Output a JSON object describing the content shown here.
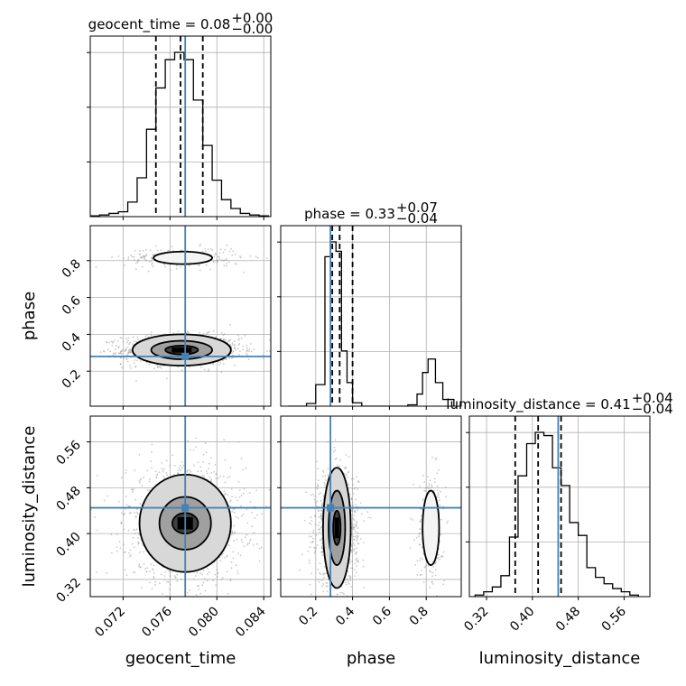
{
  "chart_data": {
    "type": "corner",
    "parameters": [
      "geocent_time",
      "phase",
      "luminosity_distance"
    ],
    "truths": {
      "geocent_time": 0.0773,
      "phase": 0.28,
      "luminosity_distance": 0.445
    },
    "truth_color": "#4682b4",
    "titles": [
      {
        "param": "geocent_time",
        "label": "geocent_time = 0.08",
        "sup": "+0.00",
        "sub": "−0.00"
      },
      {
        "param": "phase",
        "label": "phase = 0.33",
        "sup": "+0.07",
        "sub": "−0.04"
      },
      {
        "param": "luminosity_distance",
        "label": "luminosity_distance = 0.41",
        "sup": "+0.04",
        "sub": "−0.04"
      }
    ],
    "axes": {
      "geocent_time": {
        "range": [
          0.0692,
          0.0846
        ],
        "ticks": [
          "0.072",
          "0.076",
          "0.080",
          "0.084"
        ],
        "tick_values": [
          0.072,
          0.076,
          0.08,
          0.084
        ]
      },
      "phase": {
        "range": [
          0.01,
          0.99
        ],
        "ticks": [
          "0.2",
          "0.4",
          "0.6",
          "0.8"
        ],
        "tick_values": [
          0.2,
          0.4,
          0.6,
          0.8
        ]
      },
      "luminosity_distance": {
        "range": [
          0.29,
          0.605
        ],
        "ticks": [
          "0.32",
          "0.40",
          "0.48",
          "0.56"
        ],
        "tick_values": [
          0.32,
          0.4,
          0.48,
          0.56
        ]
      }
    },
    "histograms": {
      "geocent_time": {
        "bin_edges": [
          0.0692,
          0.07,
          0.0708,
          0.0716,
          0.0724,
          0.0732,
          0.074,
          0.0748,
          0.0756,
          0.0764,
          0.0772,
          0.078,
          0.0788,
          0.0796,
          0.0804,
          0.0812,
          0.082,
          0.0828,
          0.0836,
          0.0844
        ],
        "counts": [
          1,
          2,
          4,
          6,
          18,
          48,
          108,
          159,
          194,
          203,
          194,
          144,
          88,
          45,
          21,
          10,
          4,
          2,
          1
        ],
        "quantiles": [
          0.0748,
          0.0769,
          0.0788
        ]
      },
      "phase": {
        "bin_edges": [
          0.05,
          0.1,
          0.15,
          0.2,
          0.25,
          0.28,
          0.31,
          0.34,
          0.37,
          0.4,
          0.45,
          0.5,
          0.55,
          0.6,
          0.65,
          0.7,
          0.75,
          0.78,
          0.81,
          0.85,
          0.89,
          0.95
        ],
        "counts": [
          0,
          0,
          4,
          32,
          222,
          244,
          230,
          82,
          35,
          5,
          0,
          0,
          0,
          0,
          0,
          2,
          18,
          50,
          70,
          35,
          10
        ],
        "quantiles": [
          0.29,
          0.33,
          0.4
        ]
      },
      "luminosity_distance": {
        "bin_edges": [
          0.3,
          0.315,
          0.33,
          0.345,
          0.36,
          0.375,
          0.39,
          0.405,
          0.42,
          0.435,
          0.45,
          0.465,
          0.48,
          0.495,
          0.51,
          0.525,
          0.54,
          0.555,
          0.57,
          0.585
        ],
        "counts": [
          1,
          3,
          6,
          13,
          37,
          75,
          95,
          102,
          100,
          80,
          69,
          46,
          38,
          18,
          12,
          8,
          5,
          3,
          1
        ],
        "quantiles": [
          0.37,
          0.41,
          0.45
        ]
      }
    },
    "density_clusters": [
      {
        "x": "geocent_time",
        "y": "phase",
        "cx": 0.077,
        "cy": 0.315,
        "sx": 0.002,
        "sy": 0.032,
        "n": 1400,
        "contour_rx": [
          0.0014,
          0.0026,
          0.0042
        ],
        "contour_ry": [
          0.024,
          0.05,
          0.085
        ]
      },
      {
        "x": "geocent_time",
        "y": "phase",
        "cx": 0.0771,
        "cy": 0.815,
        "sx": 0.002,
        "sy": 0.022,
        "n": 260,
        "contour_rx": [
          0.0025
        ],
        "contour_ry": [
          0.034
        ]
      },
      {
        "x": "geocent_time",
        "y": "luminosity_distance",
        "cx": 0.0773,
        "cy": 0.418,
        "sx": 0.002,
        "sy": 0.04,
        "n": 1400,
        "contour_rx": [
          0.0011,
          0.0022,
          0.0039
        ],
        "contour_ry": [
          0.018,
          0.046,
          0.085
        ]
      },
      {
        "x": "phase",
        "y": "luminosity_distance",
        "cx": 0.315,
        "cy": 0.41,
        "sx": 0.045,
        "sy": 0.04,
        "n": 1200,
        "contour_rx": [
          0.02,
          0.045,
          0.075
        ],
        "contour_ry": [
          0.03,
          0.065,
          0.105
        ]
      },
      {
        "x": "phase",
        "y": "luminosity_distance",
        "cx": 0.825,
        "cy": 0.41,
        "sx": 0.03,
        "sy": 0.038,
        "n": 260,
        "contour_rx": [
          0.045
        ],
        "contour_ry": [
          0.065
        ]
      }
    ],
    "grid": true
  }
}
